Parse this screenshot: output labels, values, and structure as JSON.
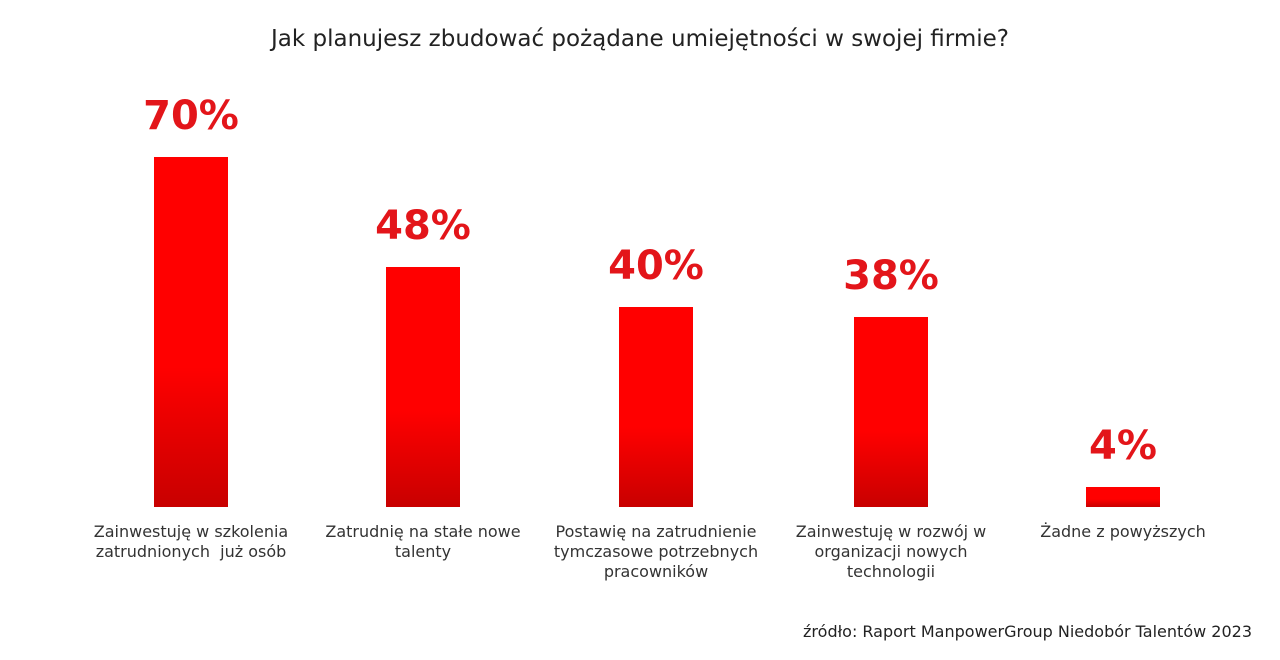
{
  "chart_data": {
    "type": "bar",
    "title": "Jak planujesz zbudować pożądane umiejętności w swojej firmie?",
    "categories": [
      "Zainwestuję w szkolenia zatrudnionych  już osób",
      "Zatrudnię na stałe nowe talenty",
      "Postawię na zatrudnienie tymczasowe potrzebnych pracowników",
      "Zainwestuję w rozwój w organizacji nowych technologii",
      "Żadne z powyższych"
    ],
    "values": [
      70,
      48,
      40,
      38,
      4
    ],
    "value_labels": [
      "70%",
      "48%",
      "40%",
      "38%",
      "4%"
    ],
    "color": "#ff0000",
    "source": "źródło: Raport ManpowerGroup Niedobór Talentów 2023"
  }
}
